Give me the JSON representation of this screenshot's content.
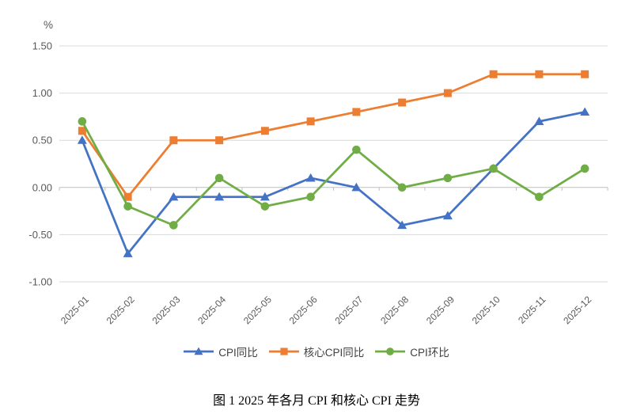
{
  "colors": {
    "background": "#FFFFFF",
    "gridline": "#D9D9D9",
    "axis_line": "#BFBFBF",
    "tick_label": "#595959",
    "legend_text": "#404040",
    "caption_text": "#000000"
  },
  "chart_data": {
    "type": "line",
    "title": "图 1  2025 年各月 CPI 和核心 CPI 走势",
    "ylabel": "%",
    "xlabel": "",
    "ylim": [
      -1.0,
      1.5
    ],
    "y_ticks": [
      "1.50",
      "1.00",
      "0.50",
      "0.00",
      "-0.50",
      "-1.00"
    ],
    "grid": true,
    "legend_position": "bottom",
    "categories": [
      "2025-01",
      "2025-02",
      "2025-03",
      "2025-04",
      "2025-05",
      "2025-06",
      "2025-07",
      "2025-08",
      "2025-09",
      "2025-10",
      "2025-11",
      "2025-12"
    ],
    "series": [
      {
        "id": "cpi-yoy",
        "name": "CPI同比",
        "color": "#4472C4",
        "marker": "triangle",
        "values": [
          0.5,
          -0.7,
          -0.1,
          -0.1,
          -0.1,
          0.1,
          0.0,
          -0.4,
          -0.3,
          0.2,
          0.7,
          0.8
        ]
      },
      {
        "id": "core-cpi-yoy",
        "name": "核心CPI同比",
        "color": "#ED7D31",
        "marker": "square",
        "values": [
          0.6,
          -0.1,
          0.5,
          0.5,
          0.6,
          0.7,
          0.8,
          0.9,
          1.0,
          1.2,
          1.2,
          1.2
        ]
      },
      {
        "id": "cpi-mom",
        "name": "CPI环比",
        "color": "#70AD47",
        "marker": "circle",
        "values": [
          0.7,
          -0.2,
          -0.4,
          0.1,
          -0.2,
          -0.1,
          0.4,
          0.0,
          0.1,
          0.2,
          -0.1,
          0.2
        ]
      }
    ]
  }
}
